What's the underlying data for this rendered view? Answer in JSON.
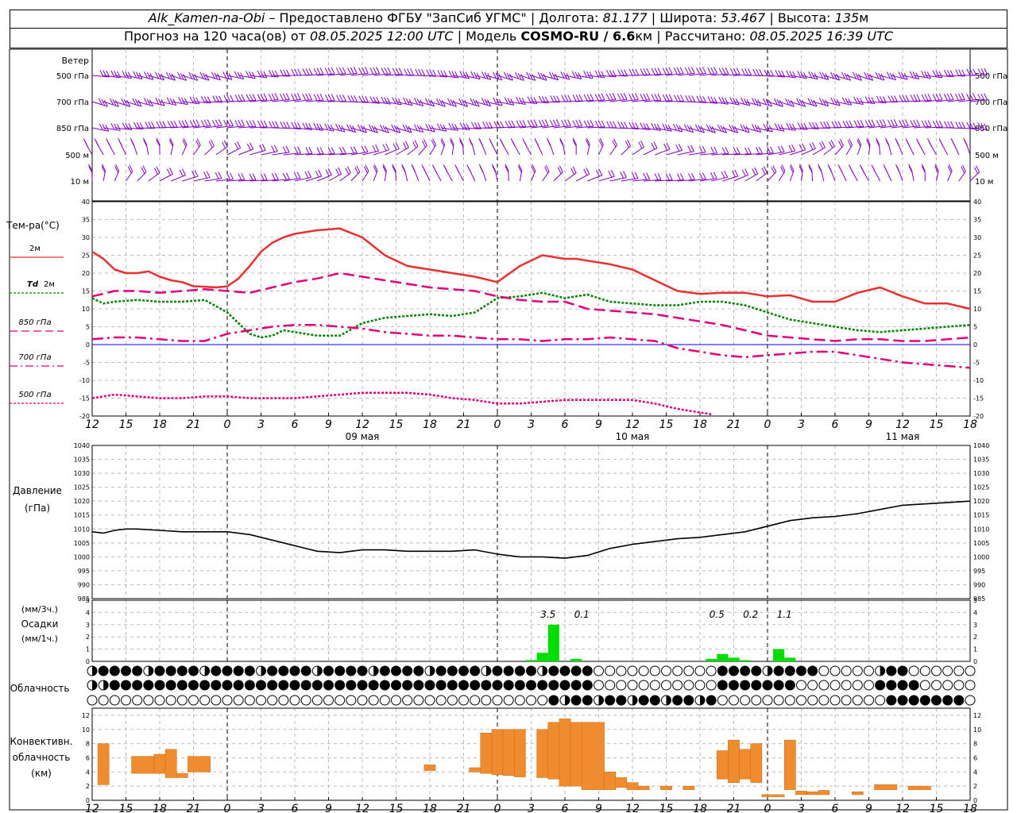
{
  "header": {
    "station": "Alk_Kamen-na-Obi",
    "provider": "– Предоставлено ФГБУ \"ЗапСиб УГМС\"",
    "lon_label": "Долгота:",
    "lon": "81.177",
    "lat_label": "Широта:",
    "lat": "53.467",
    "alt_label": "Высота:",
    "alt": "135",
    "alt_unit": "м",
    "forecast_prefix": "Прогноз на 120 часа(ов) от",
    "forecast_time": "08.05.2025 12:00 UTC",
    "model_prefix": "Модель",
    "model": "COSMO-RU / 6.6",
    "model_unit": "км",
    "computed_prefix": "Рассчитано:",
    "computed_time": "08.05.2025 16:39 UTC"
  },
  "time_axis": {
    "hour_ticks": [
      "12",
      "15",
      "18",
      "21",
      "0",
      "3",
      "6",
      "9",
      "12",
      "15",
      "18",
      "21",
      "0",
      "3",
      "6",
      "9",
      "12",
      "15",
      "18",
      "21",
      "0",
      "3",
      "6",
      "9",
      "12",
      "15",
      "18"
    ],
    "day_labels": [
      {
        "hour": 24,
        "label": "09 мая"
      },
      {
        "hour": 48,
        "label": "10 мая"
      },
      {
        "hour": 72,
        "label": "11 мая"
      }
    ],
    "range_hours": [
      0,
      78
    ]
  },
  "wind": {
    "title": "Ветер",
    "levels": [
      "500 гПа",
      "700 гПа",
      "850 гПа",
      "500 м",
      "10  м"
    ],
    "color": "#8000c0"
  },
  "temperature": {
    "title": "Тем-ра(°C)",
    "ylim": [
      -20,
      40
    ],
    "ticks": [
      40,
      35,
      30,
      25,
      20,
      15,
      10,
      5,
      0,
      -5,
      -10,
      -15,
      -20
    ],
    "legend": [
      {
        "label": "2м",
        "color": "#e83030",
        "style": "solid"
      },
      {
        "label_italic": "Td",
        "label": "2м",
        "color": "#008000",
        "style": "dotted"
      },
      {
        "label": "850 гПа",
        "color": "#e0007a",
        "style": "dashed"
      },
      {
        "label": "700 гПа",
        "color": "#e0007a",
        "style": "dashdot"
      },
      {
        "label": "500 гПа",
        "color": "#e0007a",
        "style": "fine"
      }
    ]
  },
  "pressure": {
    "title": "Давление",
    "unit": "(гПа)",
    "ylim": [
      985,
      1040
    ],
    "ticks": [
      1040,
      1035,
      1030,
      1025,
      1020,
      1015,
      1010,
      1005,
      1000,
      995,
      990,
      985
    ]
  },
  "precip": {
    "title": "Осадки",
    "unit_top": "(мм/3ч.)",
    "unit_bottom": "(мм/1ч.)",
    "ylim": [
      0,
      5
    ],
    "ticks": [
      5,
      4,
      3,
      2,
      1,
      0
    ],
    "color": "#00dd00",
    "totals": [
      {
        "hour": 40.5,
        "label": "3.5"
      },
      {
        "hour": 43.5,
        "label": "0.1"
      },
      {
        "hour": 55.5,
        "label": "0.5"
      },
      {
        "hour": 58.5,
        "label": "0.2"
      },
      {
        "hour": 61.5,
        "label": "1.1"
      }
    ]
  },
  "clouds": {
    "title": "Облачность"
  },
  "convective": {
    "title_line1": "Конвективн.",
    "title_line2": "облачность",
    "unit": "(км)",
    "ylim": [
      0,
      13
    ],
    "ticks": [
      12,
      10,
      8,
      6,
      4,
      2,
      0
    ],
    "color": "#f08c30"
  },
  "chart_data": [
    {
      "type": "line",
      "title": "Тем-ра(°C)",
      "x_unit": "hours since 08.05.2025 12:00 UTC",
      "ylim": [
        -20,
        40
      ],
      "series": [
        {
          "name": "2м",
          "x": [
            0,
            1,
            2,
            3,
            4,
            5,
            6,
            7,
            8,
            9,
            10,
            11,
            12,
            13,
            14,
            15,
            16,
            17,
            18,
            20,
            22,
            24,
            26,
            28,
            30,
            32,
            34,
            36,
            38,
            40,
            42,
            43,
            44,
            46,
            48,
            50,
            52,
            54,
            56,
            58,
            60,
            62,
            64,
            66,
            68,
            70,
            72,
            74,
            76,
            78
          ],
          "values": [
            26,
            24,
            21,
            20,
            20,
            20.5,
            19,
            18,
            17.5,
            16.3,
            16.2,
            16,
            16.3,
            18.5,
            22,
            26,
            28.5,
            30,
            31,
            32,
            32.5,
            30,
            25,
            22,
            21,
            20,
            19,
            17.5,
            22,
            25,
            24,
            24,
            23.5,
            22.5,
            21,
            18,
            15,
            14.2,
            14.5,
            14.5,
            13.5,
            13.8,
            12,
            12,
            14.5,
            16,
            13.5,
            11.5,
            11.5,
            10
          ]
        },
        {
          "name": "Td 2м",
          "x": [
            0,
            1,
            2,
            4,
            6,
            8,
            10,
            12,
            14,
            15,
            16,
            17,
            18,
            20,
            22,
            24,
            26,
            28,
            30,
            32,
            34,
            36,
            38,
            40,
            42,
            44,
            46,
            48,
            50,
            52,
            54,
            56,
            58,
            60,
            62,
            64,
            66,
            68,
            70,
            72,
            74,
            76,
            78
          ],
          "values": [
            13,
            11.5,
            12,
            12.5,
            12,
            12,
            12.5,
            9,
            3,
            2,
            2.5,
            4,
            3.5,
            2.5,
            2.5,
            6,
            7.5,
            8,
            8.5,
            8,
            9,
            13,
            13.5,
            14.5,
            13,
            14,
            12,
            11.5,
            11,
            11,
            12,
            12,
            11,
            9,
            7,
            6,
            5,
            4,
            3.5,
            4,
            4.5,
            5,
            5.5
          ]
        },
        {
          "name": "850 гПа",
          "x": [
            0,
            2,
            4,
            6,
            8,
            10,
            12,
            14,
            16,
            18,
            20,
            22,
            24,
            26,
            28,
            30,
            32,
            34,
            36,
            38,
            40,
            42,
            44,
            46,
            48,
            50,
            52,
            54,
            56,
            58,
            60,
            62,
            64,
            66,
            68,
            70,
            72,
            74,
            76,
            78
          ],
          "values": [
            13.5,
            15,
            15,
            14.5,
            15,
            15.5,
            15,
            14.5,
            16,
            17.5,
            18.5,
            20,
            19,
            18,
            17,
            16,
            15.5,
            15,
            13.5,
            12.5,
            12,
            12,
            10,
            9.5,
            9,
            8.5,
            7.5,
            6.5,
            5.5,
            4,
            2.5,
            2,
            1.5,
            1,
            1.5,
            1.5,
            1,
            1,
            1.5,
            2
          ]
        },
        {
          "name": "700 гПа",
          "x": [
            0,
            2,
            4,
            6,
            8,
            10,
            12,
            14,
            16,
            18,
            20,
            22,
            24,
            26,
            28,
            30,
            32,
            34,
            36,
            38,
            40,
            42,
            44,
            46,
            48,
            50,
            52,
            54,
            56,
            58,
            60,
            62,
            64,
            66,
            68,
            70,
            72,
            74,
            76,
            78
          ],
          "values": [
            1.5,
            2,
            2,
            1.5,
            1,
            1,
            3,
            4,
            5,
            5.5,
            5.5,
            5,
            4.5,
            3.5,
            3,
            2.5,
            2.5,
            2,
            1.5,
            1.5,
            1,
            1.5,
            1.5,
            2,
            1.5,
            1,
            -1,
            -2,
            -3,
            -3.5,
            -3,
            -2.5,
            -2,
            -2,
            -3,
            -4,
            -5,
            -5.5,
            -6,
            -6.5
          ]
        },
        {
          "name": "500 гПа",
          "x": [
            0,
            2,
            4,
            6,
            8,
            10,
            12,
            14,
            16,
            18,
            20,
            22,
            24,
            26,
            28,
            30,
            32,
            34,
            36,
            38,
            40,
            42,
            44,
            46,
            48,
            50,
            52,
            54,
            55
          ],
          "values": [
            -15,
            -14,
            -14.5,
            -15,
            -15,
            -14.5,
            -14.5,
            -15,
            -15,
            -15,
            -14.5,
            -14,
            -13.5,
            -13.5,
            -13.5,
            -14,
            -15,
            -15.5,
            -16.5,
            -16.5,
            -16,
            -15.5,
            -15.5,
            -15.5,
            -15.5,
            -16.5,
            -18,
            -19,
            -19.5
          ]
        }
      ]
    },
    {
      "type": "line",
      "title": "Давление",
      "ylabel": "(гПа)",
      "x_unit": "hours since 08.05.2025 12:00 UTC",
      "ylim": [
        985,
        1040
      ],
      "series": [
        {
          "name": "Давление",
          "x": [
            0,
            1,
            2,
            3,
            4,
            6,
            8,
            10,
            12,
            14,
            16,
            18,
            20,
            22,
            24,
            26,
            28,
            30,
            32,
            34,
            36,
            38,
            40,
            42,
            44,
            46,
            48,
            50,
            52,
            54,
            56,
            58,
            60,
            62,
            64,
            66,
            68,
            70,
            72,
            74,
            76,
            78
          ],
          "values": [
            1009,
            1008.5,
            1009.5,
            1010,
            1010,
            1009.5,
            1009,
            1009,
            1009,
            1008,
            1006,
            1004,
            1002,
            1001.5,
            1002.5,
            1002.5,
            1002,
            1002,
            1002,
            1002.5,
            1001,
            1000,
            1000,
            999.5,
            1000.5,
            1003,
            1004.5,
            1005.5,
            1006.5,
            1007,
            1008,
            1009,
            1011,
            1013,
            1014,
            1014.5,
            1015.5,
            1017,
            1018.5,
            1019,
            1019.5,
            1020
          ]
        }
      ]
    },
    {
      "type": "bar",
      "title": "Осадки",
      "ylabel": "(мм/1ч.)",
      "x_unit": "hours since 08.05.2025 12:00 UTC",
      "ylim": [
        0,
        5
      ],
      "x": [
        39,
        40,
        41,
        43,
        55,
        56,
        57,
        58,
        61,
        62
      ],
      "values": [
        0.1,
        0.7,
        3.0,
        0.2,
        0.2,
        0.6,
        0.3,
        0.1,
        1.0,
        0.3
      ]
    },
    {
      "type": "bar",
      "title": "Конвективн. облачность",
      "ylabel": "(км)",
      "x_unit": "hours since 08.05.2025 12:00 UTC",
      "ylim": [
        0,
        13
      ],
      "bars": [
        {
          "x0": 0.5,
          "x1": 1.5,
          "bottom": 2.2,
          "top": 8
        },
        {
          "x0": 3.5,
          "x1": 5.5,
          "bottom": 3.8,
          "top": 6.2
        },
        {
          "x0": 5.5,
          "x1": 6.5,
          "bottom": 3.8,
          "top": 6.5
        },
        {
          "x0": 6.5,
          "x1": 7.5,
          "bottom": 3.2,
          "top": 7.2
        },
        {
          "x0": 7.5,
          "x1": 8.5,
          "bottom": 3.2,
          "top": 3.8
        },
        {
          "x0": 8.5,
          "x1": 10.5,
          "bottom": 4,
          "top": 6.2
        },
        {
          "x0": 29.5,
          "x1": 30.5,
          "bottom": 4.2,
          "top": 5
        },
        {
          "x0": 33.5,
          "x1": 34.5,
          "bottom": 4,
          "top": 4.6
        },
        {
          "x0": 34.5,
          "x1": 35.5,
          "bottom": 3.8,
          "top": 9.5
        },
        {
          "x0": 35.5,
          "x1": 36.5,
          "bottom": 3.6,
          "top": 10
        },
        {
          "x0": 36.5,
          "x1": 37.5,
          "bottom": 3.5,
          "top": 10
        },
        {
          "x0": 37.5,
          "x1": 38.5,
          "bottom": 3.3,
          "top": 10
        },
        {
          "x0": 39.5,
          "x1": 40.5,
          "bottom": 3.2,
          "top": 10
        },
        {
          "x0": 40.5,
          "x1": 41.5,
          "bottom": 3.0,
          "top": 11
        },
        {
          "x0": 41.5,
          "x1": 42.5,
          "bottom": 2.0,
          "top": 11.5
        },
        {
          "x0": 42.5,
          "x1": 43.5,
          "bottom": 2.0,
          "top": 11
        },
        {
          "x0": 43.5,
          "x1": 45.5,
          "bottom": 1.5,
          "top": 11
        },
        {
          "x0": 45.5,
          "x1": 46.5,
          "bottom": 1.5,
          "top": 4
        },
        {
          "x0": 46.5,
          "x1": 47.5,
          "bottom": 1.8,
          "top": 3.2
        },
        {
          "x0": 47.5,
          "x1": 48.5,
          "bottom": 1.5,
          "top": 2.5
        },
        {
          "x0": 48.5,
          "x1": 49.5,
          "bottom": 1.5,
          "top": 2
        },
        {
          "x0": 50.5,
          "x1": 51.5,
          "bottom": 1.5,
          "top": 2
        },
        {
          "x0": 52.5,
          "x1": 53.5,
          "bottom": 1.5,
          "top": 2
        },
        {
          "x0": 55.5,
          "x1": 56.5,
          "bottom": 3,
          "top": 7
        },
        {
          "x0": 56.5,
          "x1": 57.5,
          "bottom": 2.5,
          "top": 8.5
        },
        {
          "x0": 57.5,
          "x1": 58.5,
          "bottom": 3,
          "top": 7.2
        },
        {
          "x0": 58.5,
          "x1": 59.5,
          "bottom": 2.5,
          "top": 8
        },
        {
          "x0": 59.5,
          "x1": 61.5,
          "bottom": 0.5,
          "top": 0.8
        },
        {
          "x0": 61.5,
          "x1": 62.5,
          "bottom": 1.5,
          "top": 8.5
        },
        {
          "x0": 62.5,
          "x1": 63.5,
          "bottom": 0.8,
          "top": 1.3
        },
        {
          "x0": 63.5,
          "x1": 64.5,
          "bottom": 0.8,
          "top": 1.2
        },
        {
          "x0": 64.5,
          "x1": 65.5,
          "bottom": 0.8,
          "top": 1.4
        },
        {
          "x0": 67.5,
          "x1": 68.5,
          "bottom": 0.8,
          "top": 1.2
        },
        {
          "x0": 69.5,
          "x1": 71.5,
          "bottom": 1.5,
          "top": 2.2
        },
        {
          "x0": 72.5,
          "x1": 74.5,
          "bottom": 1.5,
          "top": 2
        }
      ]
    }
  ]
}
